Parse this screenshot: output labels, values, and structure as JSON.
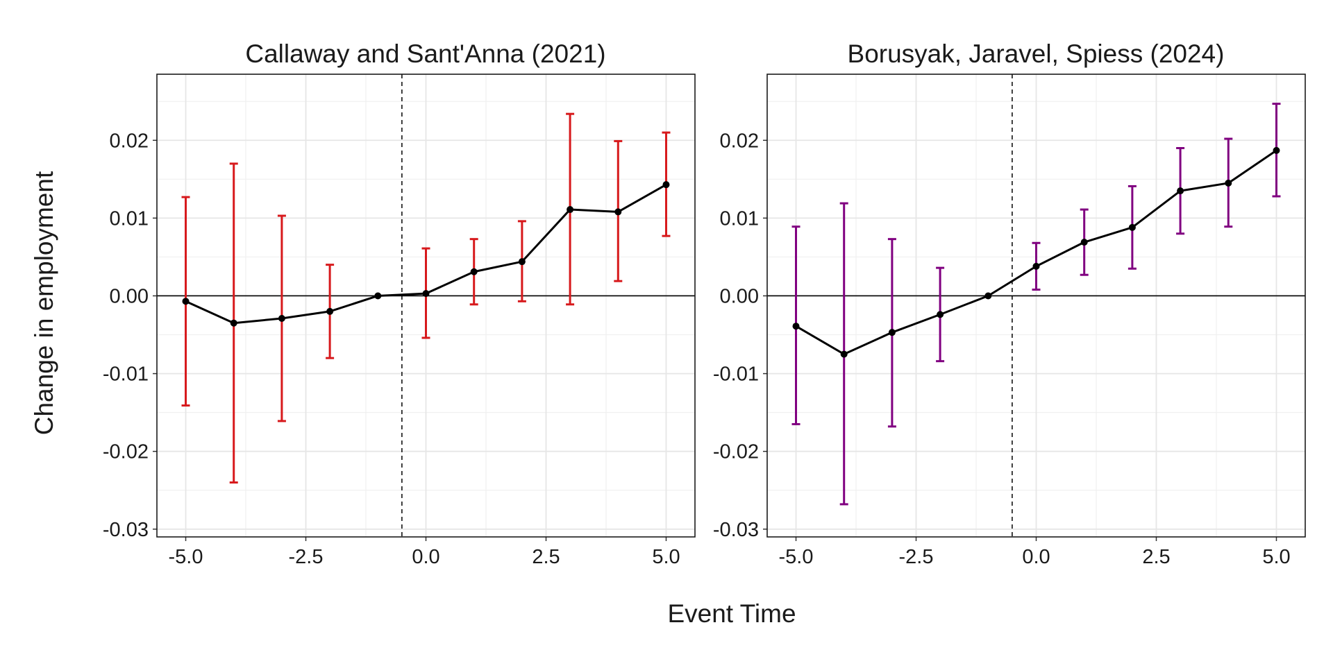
{
  "figure": {
    "xlabel": "Event Time",
    "ylabel": "Change in employment"
  },
  "chart_data": [
    {
      "type": "line",
      "title": "Callaway and Sant'Anna (2021)",
      "xlim": [
        -5.6,
        5.6
      ],
      "ylim": [
        -0.031,
        0.0285
      ],
      "xticks": [
        -5.0,
        -2.5,
        0.0,
        2.5,
        5.0
      ],
      "xtick_labels": [
        "-5.0",
        "-2.5",
        "0.0",
        "2.5",
        "5.0"
      ],
      "yticks": [
        -0.03,
        -0.02,
        -0.01,
        0.0,
        0.01,
        0.02
      ],
      "ytick_labels": [
        "-0.03",
        "-0.02",
        "-0.01",
        "0.00",
        "0.01",
        "0.02"
      ],
      "grid": true,
      "zero_line": 0.0,
      "treatment_line_x": -0.5,
      "error_bar_color": "#d7191c",
      "line_color": "#000000",
      "x": [
        -5,
        -4,
        -3,
        -2,
        -1,
        0,
        1,
        2,
        3,
        4,
        5
      ],
      "y": [
        -0.0007,
        -0.0035,
        -0.0029,
        -0.002,
        0.0,
        0.0003,
        0.0031,
        0.0044,
        0.0111,
        0.0108,
        0.0143
      ],
      "ci_low": [
        -0.0141,
        -0.024,
        -0.0161,
        -0.008,
        0.0,
        -0.0054,
        -0.0011,
        -0.0007,
        -0.0011,
        0.0019,
        0.0077
      ],
      "ci_high": [
        0.0127,
        0.017,
        0.0103,
        0.004,
        0.0,
        0.0061,
        0.0073,
        0.0096,
        0.0234,
        0.0199,
        0.021
      ]
    },
    {
      "type": "line",
      "title": "Borusyak, Jaravel, Spiess (2024)",
      "xlim": [
        -5.6,
        5.6
      ],
      "ylim": [
        -0.031,
        0.0285
      ],
      "xticks": [
        -5.0,
        -2.5,
        0.0,
        2.5,
        5.0
      ],
      "xtick_labels": [
        "-5.0",
        "-2.5",
        "0.0",
        "2.5",
        "5.0"
      ],
      "yticks": [
        -0.03,
        -0.02,
        -0.01,
        0.0,
        0.01,
        0.02
      ],
      "ytick_labels": [
        "-0.03",
        "-0.02",
        "-0.01",
        "0.00",
        "0.01",
        "0.02"
      ],
      "grid": true,
      "zero_line": 0.0,
      "treatment_line_x": -0.5,
      "error_bar_color": "#800080",
      "line_color": "#000000",
      "x": [
        -5,
        -4,
        -3,
        -2,
        -1,
        0,
        1,
        2,
        3,
        4,
        5
      ],
      "y": [
        -0.0039,
        -0.0075,
        -0.0047,
        -0.0024,
        0.0,
        0.0038,
        0.0069,
        0.0088,
        0.0135,
        0.0145,
        0.0187
      ],
      "ci_low": [
        -0.0165,
        -0.0268,
        -0.0168,
        -0.0084,
        0.0,
        0.0008,
        0.0027,
        0.0035,
        0.008,
        0.0089,
        0.0128
      ],
      "ci_high": [
        0.0089,
        0.0119,
        0.0073,
        0.0036,
        0.0,
        0.0068,
        0.0111,
        0.0141,
        0.019,
        0.0202,
        0.0247
      ]
    }
  ]
}
